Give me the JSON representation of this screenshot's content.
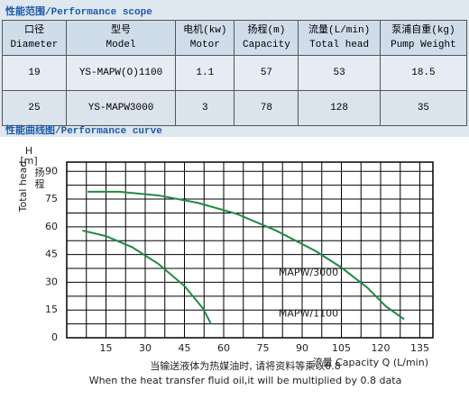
{
  "scope_title": "性能范围/Performance scope",
  "table": {
    "header": [
      [
        "口径",
        "Diameter"
      ],
      [
        "型号",
        "Model"
      ],
      [
        "电机(kw)",
        "Motor"
      ],
      [
        "扬程(m)",
        "Capacity"
      ],
      [
        "流量(L/min)",
        "Total head"
      ],
      [
        "泵浦自重(kg)",
        "Pump Weight"
      ]
    ],
    "rows": [
      [
        "19",
        "YS-MAPW(O)1100",
        "1.1",
        "57",
        "53",
        "18.5"
      ],
      [
        "25",
        "YS-MAPW3000",
        "3",
        "78",
        "128",
        "35"
      ]
    ]
  },
  "curve_title": "性能曲线图/Performance curve",
  "chart_data": {
    "type": "line",
    "y_label": "Total head",
    "y_unit": "H [m]",
    "y_label_cn": "扬程",
    "x_label": "流量 Capacity Q (L/min)",
    "xlim": [
      0,
      140
    ],
    "ylim": [
      0,
      95
    ],
    "xticks": [
      15,
      30,
      45,
      60,
      75,
      90,
      105,
      120,
      135
    ],
    "yticks": [
      0,
      15,
      30,
      45,
      60,
      75,
      90
    ],
    "grid": true,
    "series": [
      {
        "name": "MAPW/3000",
        "color": "#1f8a42",
        "x": [
          8,
          20,
          35,
          50,
          65,
          80,
          95,
          105,
          115,
          122,
          129
        ],
        "values": [
          79,
          79,
          77,
          73,
          67,
          58,
          47,
          38,
          27,
          17,
          10
        ]
      },
      {
        "name": "MAPW/1100",
        "color": "#1f8a42",
        "x": [
          6,
          15,
          25,
          35,
          45,
          52,
          55
        ],
        "values": [
          58,
          55,
          49,
          40,
          28,
          16,
          8
        ]
      }
    ],
    "notes": [
      "当输送液体为热媒油时, 请将资料等乘以0.8",
      "When the heat transfer fluid oil,it will be multiplied by 0.8 data"
    ]
  }
}
